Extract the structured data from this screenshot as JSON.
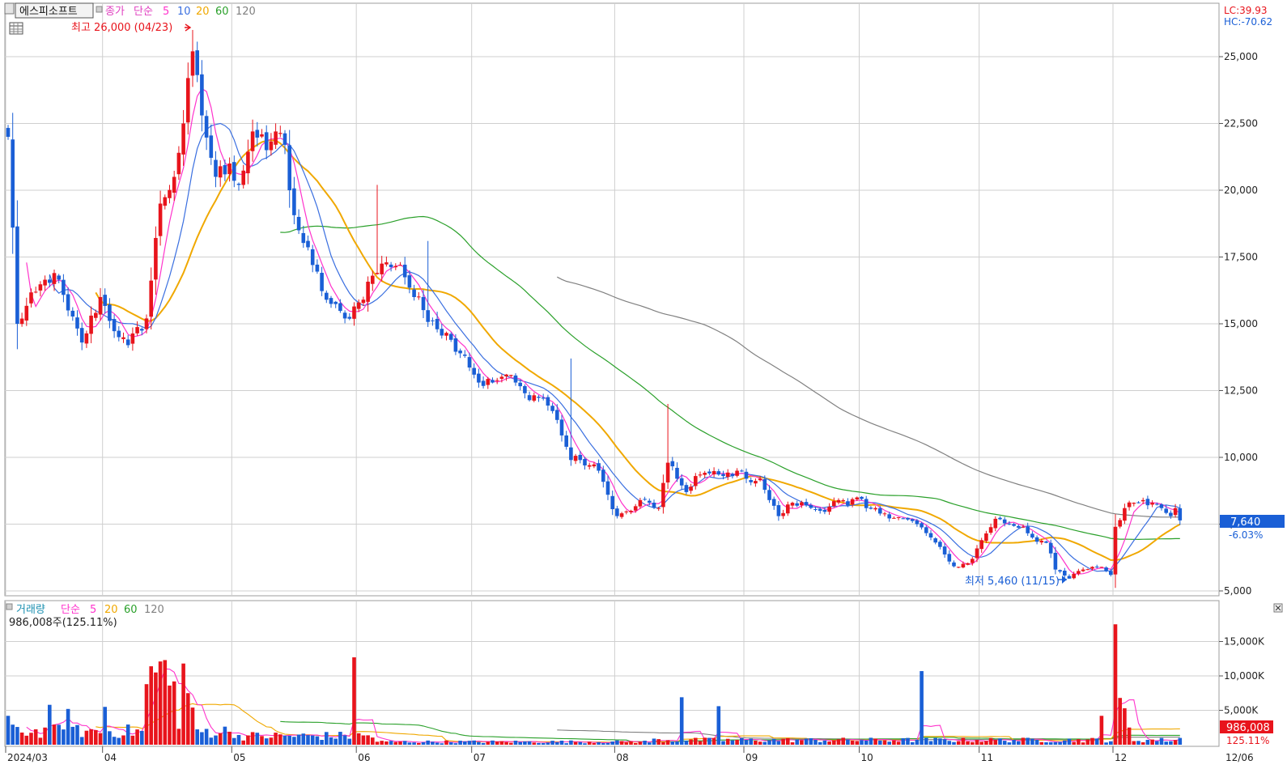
{
  "header": {
    "stock_name": "에스피소프트",
    "price_label": "종가",
    "ma_type": "단순",
    "ma_periods": [
      "5",
      "10",
      "20",
      "60",
      "120"
    ],
    "high_annotation": "최고 26,000 (04/23)",
    "low_annotation": "최저 5,460 (11/15)",
    "lc": "LC:39.93",
    "hc": "HC:-70.62"
  },
  "volume_header": {
    "label": "거래량",
    "ma_type": "단순",
    "ma_periods": [
      "5",
      "20",
      "60",
      "120"
    ],
    "current": "986,008주(125.11%)"
  },
  "last_price": {
    "value": "7,640",
    "change": "-6.03%"
  },
  "last_volume": {
    "value": "986,008",
    "ratio": "125.11%"
  },
  "price_axis_labels": [
    "25,000",
    "22,500",
    "20,000",
    "17,500",
    "15,000",
    "12,500",
    "10,000",
    "7,500",
    "5,000"
  ],
  "volume_axis_labels": [
    "15,000K",
    "10,000K",
    "5,000K"
  ],
  "month_labels": [
    "2024/03",
    "04",
    "05",
    "06",
    "07",
    "08",
    "09",
    "10",
    "11",
    "12"
  ],
  "last_date_label": "12/06",
  "colors": {
    "up": "#e8141c",
    "down": "#1a5fd6",
    "ma5": "#ff33cc",
    "ma10": "#3a6fe0",
    "ma20": "#f0a800",
    "ma60": "#2aa02a",
    "ma120": "#808080",
    "grid": "#cfcfcf"
  },
  "chart_data": {
    "type": "candlestick",
    "ylim": [
      5000,
      26000
    ],
    "grid": true,
    "month_starts": [
      {
        "label": "2024/03",
        "index": 0
      },
      {
        "label": "04",
        "index": 21
      },
      {
        "label": "05",
        "index": 49
      },
      {
        "label": "06",
        "index": 76
      },
      {
        "label": "07",
        "index": 101
      },
      {
        "label": "08",
        "index": 132
      },
      {
        "label": "09",
        "index": 160
      },
      {
        "label": "10",
        "index": 185
      },
      {
        "label": "11",
        "index": 211
      },
      {
        "label": "12",
        "index": 240
      }
    ],
    "anchors": [
      {
        "i": 0,
        "c": 22000
      },
      {
        "i": 2,
        "c": 15000
      },
      {
        "i": 6,
        "c": 16200
      },
      {
        "i": 10,
        "c": 16900
      },
      {
        "i": 13,
        "c": 15500
      },
      {
        "i": 16,
        "c": 14300
      },
      {
        "i": 20,
        "c": 16000
      },
      {
        "i": 24,
        "c": 14500
      },
      {
        "i": 26,
        "c": 14200
      },
      {
        "i": 30,
        "c": 15200
      },
      {
        "i": 33,
        "c": 19500
      },
      {
        "i": 36,
        "c": 20500
      },
      {
        "i": 38,
        "c": 22500
      },
      {
        "i": 40,
        "c": 25200
      },
      {
        "i": 42,
        "c": 22800
      },
      {
        "i": 45,
        "c": 20500
      },
      {
        "i": 48,
        "c": 21000
      },
      {
        "i": 50,
        "c": 20200
      },
      {
        "i": 53,
        "c": 22200
      },
      {
        "i": 56,
        "c": 21500
      },
      {
        "i": 58,
        "c": 22200
      },
      {
        "i": 60,
        "c": 21700
      },
      {
        "i": 61,
        "c": 20000
      },
      {
        "i": 63,
        "c": 18500
      },
      {
        "i": 66,
        "c": 17200
      },
      {
        "i": 69,
        "c": 15900
      },
      {
        "i": 73,
        "c": 15200
      },
      {
        "i": 76,
        "c": 15800
      },
      {
        "i": 79,
        "c": 16800
      },
      {
        "i": 82,
        "c": 17300
      },
      {
        "i": 85,
        "c": 17200
      },
      {
        "i": 88,
        "c": 16000
      },
      {
        "i": 92,
        "c": 15100
      },
      {
        "i": 96,
        "c": 14400
      },
      {
        "i": 99,
        "c": 13800
      },
      {
        "i": 102,
        "c": 12800
      },
      {
        "i": 105,
        "c": 12800
      },
      {
        "i": 108,
        "c": 13100
      },
      {
        "i": 112,
        "c": 12400
      },
      {
        "i": 116,
        "c": 12200
      },
      {
        "i": 119,
        "c": 11400
      },
      {
        "i": 122,
        "c": 9900
      },
      {
        "i": 124,
        "c": 9900
      },
      {
        "i": 128,
        "c": 9500
      },
      {
        "i": 130,
        "c": 8600
      },
      {
        "i": 132,
        "c": 7800
      },
      {
        "i": 135,
        "c": 8000
      },
      {
        "i": 137,
        "c": 8400
      },
      {
        "i": 141,
        "c": 8100
      },
      {
        "i": 143,
        "c": 9800
      },
      {
        "i": 145,
        "c": 9200
      },
      {
        "i": 147,
        "c": 8700
      },
      {
        "i": 149,
        "c": 9300
      },
      {
        "i": 152,
        "c": 9400
      },
      {
        "i": 155,
        "c": 9300
      },
      {
        "i": 158,
        "c": 9500
      },
      {
        "i": 160,
        "c": 9200
      },
      {
        "i": 163,
        "c": 9200
      },
      {
        "i": 165,
        "c": 8400
      },
      {
        "i": 167,
        "c": 7800
      },
      {
        "i": 170,
        "c": 8300
      },
      {
        "i": 173,
        "c": 8200
      },
      {
        "i": 176,
        "c": 8000
      },
      {
        "i": 180,
        "c": 8400
      },
      {
        "i": 182,
        "c": 8200
      },
      {
        "i": 184,
        "c": 8500
      },
      {
        "i": 186,
        "c": 8100
      },
      {
        "i": 190,
        "c": 7900
      },
      {
        "i": 194,
        "c": 7700
      },
      {
        "i": 197,
        "c": 7500
      },
      {
        "i": 200,
        "c": 7000
      },
      {
        "i": 204,
        "c": 6100
      },
      {
        "i": 206,
        "c": 5900
      },
      {
        "i": 209,
        "c": 6200
      },
      {
        "i": 211,
        "c": 6900
      },
      {
        "i": 214,
        "c": 7700
      },
      {
        "i": 217,
        "c": 7500
      },
      {
        "i": 220,
        "c": 7400
      },
      {
        "i": 222,
        "c": 7000
      },
      {
        "i": 225,
        "c": 6800
      },
      {
        "i": 227,
        "c": 5800
      },
      {
        "i": 230,
        "c": 5460
      },
      {
        "i": 233,
        "c": 5800
      },
      {
        "i": 235,
        "c": 5900
      },
      {
        "i": 237,
        "c": 5900
      },
      {
        "i": 239,
        "c": 5600
      },
      {
        "i": 240,
        "c": 7400
      },
      {
        "i": 242,
        "c": 8100
      },
      {
        "i": 244,
        "c": 8300
      },
      {
        "i": 246,
        "c": 8400
      },
      {
        "i": 248,
        "c": 8300
      },
      {
        "i": 250,
        "c": 8100
      },
      {
        "i": 252,
        "c": 7800
      },
      {
        "i": 253,
        "c": 8100
      },
      {
        "i": 254,
        "c": 7640
      }
    ],
    "volume_spikes": [
      {
        "i": 0,
        "v": 4200
      },
      {
        "i": 9,
        "v": 5800
      },
      {
        "i": 13,
        "v": 5200
      },
      {
        "i": 21,
        "v": 5500
      },
      {
        "i": 30,
        "v": 8800
      },
      {
        "i": 31,
        "v": 11400
      },
      {
        "i": 32,
        "v": 10500
      },
      {
        "i": 33,
        "v": 12100
      },
      {
        "i": 34,
        "v": 12300
      },
      {
        "i": 35,
        "v": 8600
      },
      {
        "i": 36,
        "v": 9200
      },
      {
        "i": 38,
        "v": 11800
      },
      {
        "i": 39,
        "v": 7500
      },
      {
        "i": 40,
        "v": 5400
      },
      {
        "i": 75,
        "v": 12700
      },
      {
        "i": 146,
        "v": 6900
      },
      {
        "i": 154,
        "v": 5600
      },
      {
        "i": 198,
        "v": 10700
      },
      {
        "i": 237,
        "v": 4200
      },
      {
        "i": 240,
        "v": 17500
      },
      {
        "i": 241,
        "v": 6800
      },
      {
        "i": 242,
        "v": 5300
      },
      {
        "i": 243,
        "v": 2500
      },
      {
        "i": 254,
        "v": 986
      }
    ]
  }
}
